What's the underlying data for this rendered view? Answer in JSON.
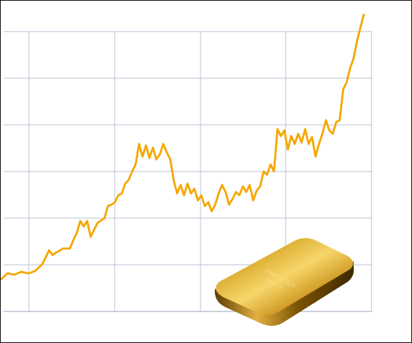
{
  "chart_data": {
    "type": "line",
    "title": "",
    "xlabel": "",
    "ylabel": "",
    "grid": true,
    "x_tick_labels": [],
    "y_tick_labels": [],
    "ylim": [
      0,
      6.5
    ],
    "series": [
      {
        "color": "#f5a700",
        "values": [
          0.68,
          0.75,
          0.82,
          0.8,
          0.79,
          0.82,
          0.85,
          0.83,
          0.82,
          0.84,
          0.87,
          0.94,
          1.01,
          1.16,
          1.31,
          1.21,
          1.26,
          1.3,
          1.35,
          1.35,
          1.35,
          1.53,
          1.68,
          1.94,
          1.82,
          1.94,
          1.6,
          1.75,
          1.9,
          1.95,
          2.0,
          2.26,
          2.29,
          2.34,
          2.49,
          2.53,
          2.74,
          2.82,
          3.0,
          3.15,
          3.59,
          3.32,
          3.56,
          3.29,
          3.51,
          3.26,
          3.37,
          3.59,
          3.41,
          3.26,
          2.82,
          2.53,
          2.71,
          2.49,
          2.74,
          2.53,
          2.63,
          2.38,
          2.49,
          2.26,
          2.34,
          2.15,
          2.29,
          2.53,
          2.71,
          2.56,
          2.29,
          2.41,
          2.56,
          2.49,
          2.68,
          2.56,
          2.71,
          2.38,
          2.59,
          2.68,
          3.0,
          2.93,
          3.15,
          3.0,
          3.91,
          3.76,
          3.88,
          3.47,
          3.76,
          3.59,
          3.81,
          3.62,
          3.91,
          3.59,
          3.74,
          3.32,
          3.59,
          3.81,
          4.1,
          3.88,
          3.81,
          4.06,
          4.1,
          4.76,
          4.91,
          5.21,
          5.43,
          5.79,
          6.09,
          6.38
        ]
      }
    ]
  },
  "colors": {
    "line": "#f5a700",
    "grid": "#b8bfd0",
    "gold": "#d4a017"
  },
  "illustration": {
    "object": "gold-bar",
    "stamp_text": "Fine Gold 999.9"
  }
}
